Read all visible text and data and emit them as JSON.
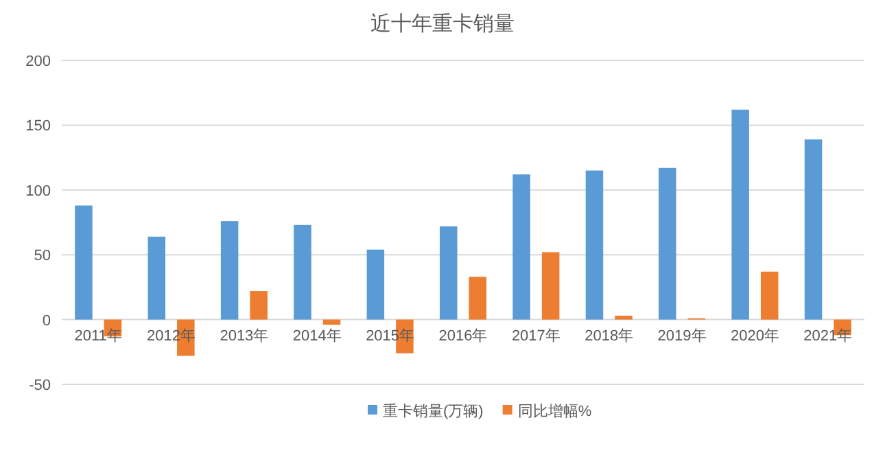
{
  "chart_data": {
    "type": "bar",
    "title": "近十年重卡销量",
    "categories": [
      "2011年",
      "2012年",
      "2013年",
      "2014年",
      "2015年",
      "2016年",
      "2017年",
      "2018年",
      "2019年",
      "2020年",
      "2021年"
    ],
    "series": [
      {
        "name": "重卡销量(万辆)",
        "color": "#5b9bd5",
        "values": [
          88,
          64,
          76,
          73,
          54,
          72,
          112,
          115,
          117,
          162,
          139
        ]
      },
      {
        "name": "同比增幅%",
        "color": "#ed7d31",
        "values": [
          -13,
          -28,
          22,
          -4,
          -26,
          33,
          52,
          3,
          1,
          37,
          -12
        ]
      }
    ],
    "ylim": [
      -50,
      200
    ],
    "yticks": [
      -50,
      0,
      50,
      100,
      150,
      200
    ],
    "grid": "y",
    "legend": "bottom"
  }
}
